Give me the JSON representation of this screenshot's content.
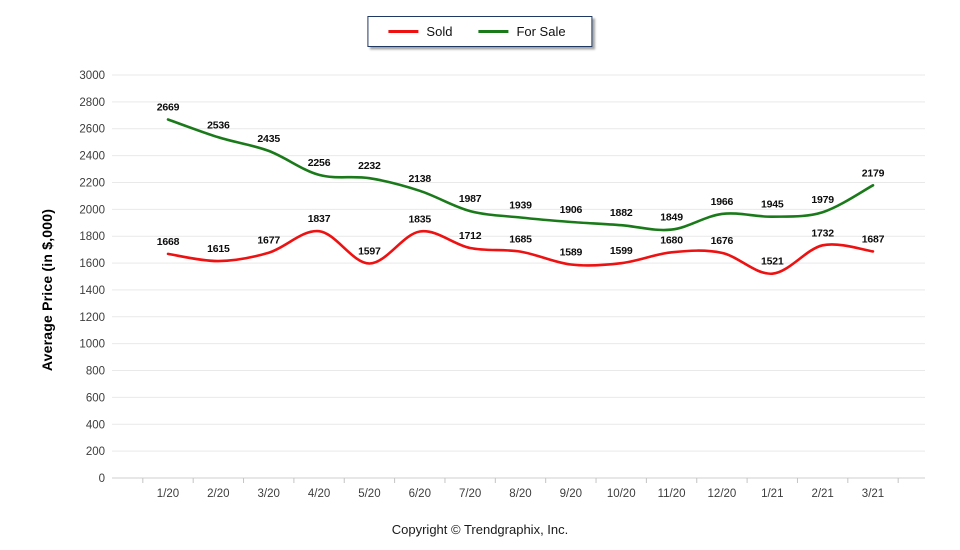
{
  "footer": {
    "copyright": "Copyright © Trendgraphix, Inc."
  },
  "chart_data": {
    "type": "line",
    "title": "",
    "xlabel": "",
    "ylabel": "Average Price (in $,000)",
    "ylim": [
      0,
      3000
    ],
    "ytick_step": 200,
    "grid": true,
    "smooth": true,
    "legend_position": "top-center",
    "categories": [
      "1/20",
      "2/20",
      "3/20",
      "4/20",
      "5/20",
      "6/20",
      "7/20",
      "8/20",
      "9/20",
      "10/20",
      "11/20",
      "12/20",
      "1/21",
      "2/21",
      "3/21"
    ],
    "series": [
      {
        "name": "Sold",
        "color": "#ee1111",
        "values": [
          1668,
          1615,
          1677,
          1837,
          1597,
          1835,
          1712,
          1685,
          1589,
          1599,
          1680,
          1676,
          1521,
          1732,
          1687
        ]
      },
      {
        "name": "For Sale",
        "color": "#1a7a1a",
        "values": [
          2669,
          2536,
          2435,
          2256,
          2232,
          2138,
          1987,
          1939,
          1906,
          1882,
          1849,
          1966,
          1945,
          1979,
          2179
        ]
      }
    ]
  }
}
